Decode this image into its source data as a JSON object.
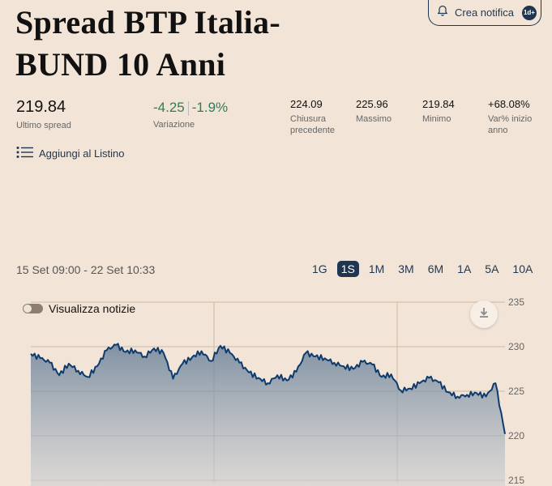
{
  "header": {
    "title_line1": "Spread BTP Italia-",
    "title_line2": "BUND 10 Anni",
    "notify_label": "Crea notifica",
    "notify_badge": "1d+"
  },
  "stats": {
    "last_spread": "219.84",
    "last_spread_label": "Ultimo spread",
    "change_abs": "-4.25",
    "change_pct": "-1.9%",
    "change_label": "Variazione",
    "prev_close": "224.09",
    "prev_close_label_1": "Chiusura",
    "prev_close_label_2": "precedente",
    "max": "225.96",
    "max_label": "Massimo",
    "min": "219.84",
    "min_label": "Minimo",
    "ytd": "+68.08%",
    "ytd_label_1": "Var% inizio",
    "ytd_label_2": "anno"
  },
  "listino_label": "Aggiungi al Listino",
  "range_text": "15 Set 09:00 - 22 Set 10:33",
  "periods": [
    "1G",
    "1S",
    "1M",
    "3M",
    "6M",
    "1A",
    "5A",
    "10A"
  ],
  "active_period": "1S",
  "notizie_label": "Visualizza notizie",
  "colors": {
    "accent": "#1f3550",
    "line": "#0d3b6e",
    "positive": "#2e7d5b",
    "background": "#f2e5d7"
  },
  "chart_data": {
    "type": "area",
    "y_ticks": [
      "215",
      "220",
      "225",
      "230",
      "235"
    ],
    "ylim": [
      215,
      235
    ],
    "grid": true,
    "x": [
      0,
      2,
      4,
      6,
      8,
      10,
      12,
      14,
      16,
      18,
      20,
      22,
      24,
      26,
      28,
      30,
      32,
      34,
      36,
      38,
      40,
      42,
      44,
      46,
      48,
      50,
      52,
      54,
      56,
      58,
      60,
      62,
      64,
      66,
      68,
      70,
      72,
      74,
      76,
      78,
      80,
      82,
      84,
      86,
      88,
      90,
      92,
      94,
      96,
      98,
      100
    ],
    "values": [
      229.2,
      228.7,
      228.2,
      226.8,
      228.1,
      227.3,
      226.6,
      227.8,
      229.6,
      230.2,
      229.4,
      229.6,
      228.9,
      229.8,
      229.3,
      226.4,
      228.1,
      228.8,
      229.5,
      228.4,
      230.1,
      229.3,
      228.2,
      227.1,
      226.5,
      225.9,
      226.8,
      226.2,
      227.2,
      229.3,
      228.9,
      228.7,
      228.2,
      227.8,
      227.5,
      228.3,
      228.0,
      226.6,
      226.9,
      225.1,
      225.3,
      225.9,
      226.5,
      226.0,
      224.9,
      224.4,
      224.6,
      224.8,
      224.4,
      225.9,
      220.2
    ]
  }
}
